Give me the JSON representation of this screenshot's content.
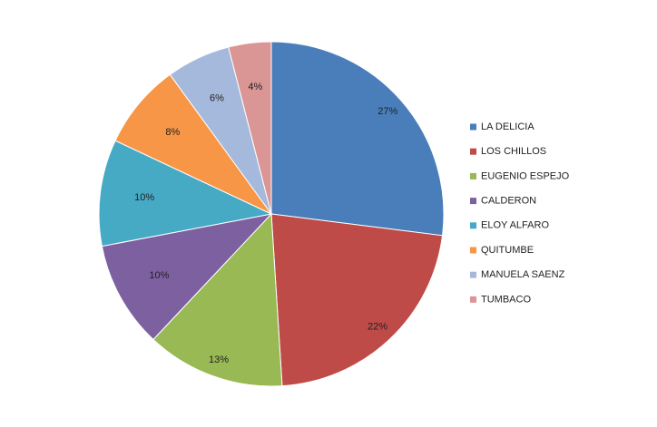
{
  "chart_data": {
    "type": "pie",
    "categories": [
      "LA DELICIA",
      "LOS CHILLOS",
      "EUGENIO ESPEJO",
      "CALDERON",
      "ELOY ALFARO",
      "QUITUMBE",
      "MANUELA SAENZ",
      "TUMBACO"
    ],
    "values": [
      27,
      22,
      13,
      10,
      10,
      8,
      6,
      4
    ],
    "value_labels": [
      "27%",
      "22%",
      "13%",
      "10%",
      "10%",
      "8%",
      "6%",
      "4%"
    ],
    "colors": [
      "#4a7ebb",
      "#be4b48",
      "#98b954",
      "#7d60a0",
      "#46aac5",
      "#f79646",
      "#a5b9dc",
      "#d99694"
    ],
    "legend": "right"
  }
}
